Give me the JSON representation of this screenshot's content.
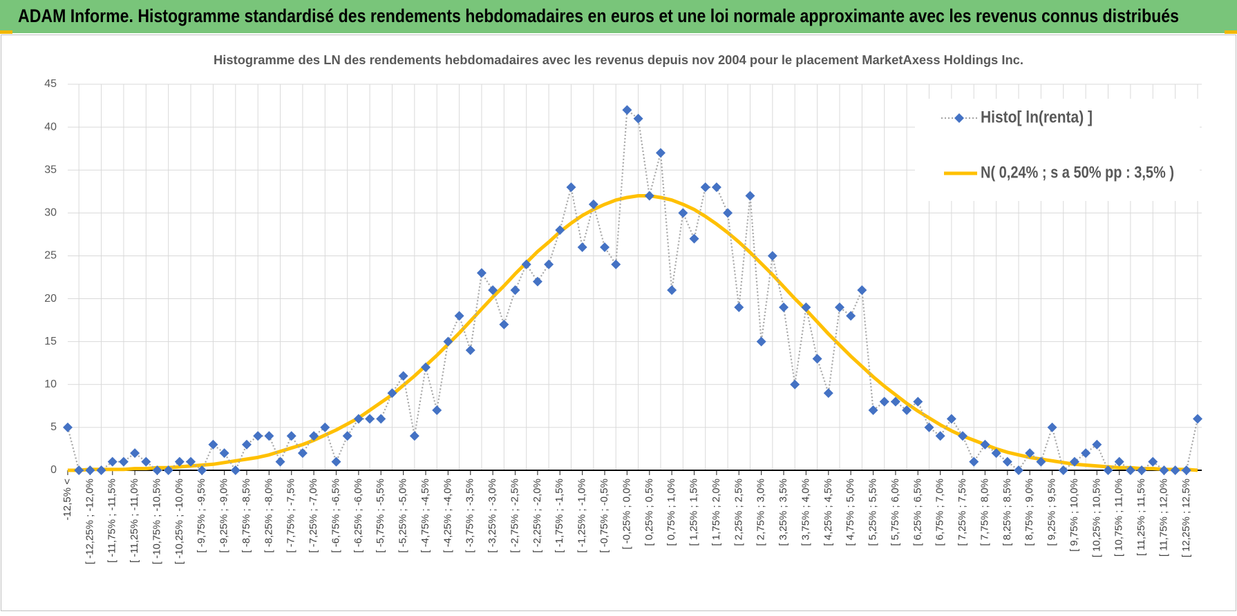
{
  "header": {
    "title": "ADAM Informe. Histogramme standardisé des rendements hebdomadaires en euros et une loi normale approximante avec les revenus connus distribués"
  },
  "chart_data": {
    "type": "line",
    "title": "Histogramme des LN des rendements hebdomadaires avec les revenus depuis nov 2004 pour le placement MarketAxess Holdings Inc.",
    "categories": [
      "-12,5% <",
      null,
      "[ -12,25% ; -12,0%",
      null,
      "[ -11,75% ; -11,5%",
      null,
      "[ -11,25% ; -11,0%",
      null,
      "[ -10,75% ; -10,5%",
      null,
      "[ -10,25% ; -10,0%",
      null,
      "[ -9,75% ; -9,5%",
      null,
      "[ -9,25% ; -9,0%",
      null,
      "[ -8,75% ; -8,5%",
      null,
      "[ -8,25% ; -8,0%",
      null,
      "[ -7,75% ; -7,5%",
      null,
      "[ -7,25% ; -7,0%",
      null,
      "[ -6,75% ; -6,5%",
      null,
      "[ -6,25% ; -6,0%",
      null,
      "[ -5,75% ; -5,5%",
      null,
      "[ -5,25% ; -5,0%",
      null,
      "[ -4,75% ; -4,5%",
      null,
      "[ -4,25% ; -4,0%",
      null,
      "[ -3,75% ; -3,5%",
      null,
      "[ -3,25% ; -3,0%",
      null,
      "[ -2,75% ; -2,5%",
      null,
      "[ -2,25% ; -2,0%",
      null,
      "[ -1,75% ; -1,5%",
      null,
      "[ -1,25% ; -1,0%",
      null,
      "[ -0,75% ; -0,5%",
      null,
      "[ -0,25% ; 0,0%",
      null,
      "[ 0,25% ; 0,5%",
      null,
      "[ 0,75% ; 1,0%",
      null,
      "[ 1,25% ; 1,5%",
      null,
      "[ 1,75% ; 2,0%",
      null,
      "[ 2,25% ; 2,5%",
      null,
      "[ 2,75% ; 3,0%",
      null,
      "[ 3,25% ; 3,5%",
      null,
      "[ 3,75% ; 4,0%",
      null,
      "[ 4,25% ; 4,5%",
      null,
      "[ 4,75% ; 5,0%",
      null,
      "[ 5,25% ; 5,5%",
      null,
      "[ 5,75% ; 6,0%",
      null,
      "[ 6,25% ; 6,5%",
      null,
      "[ 6,75% ; 7,0%",
      null,
      "[ 7,25% ; 7,5%",
      null,
      "[ 7,75% ; 8,0%",
      null,
      "[ 8,25% ; 8,5%",
      null,
      "[ 8,75% ; 9,0%",
      null,
      "[ 9,25% ; 9,5%",
      null,
      "[ 9,75% ; 10,0%",
      null,
      "[ 10,25% ; 10,5%",
      null,
      "[ 10,75% ; 11,0%",
      null,
      "[ 11,25% ; 11,5%",
      null,
      "[ 11,75% ; 12,0%",
      null,
      "[ 12,25% ; 12,5%",
      null
    ],
    "series": [
      {
        "name": "Histo[ ln(renta) ]",
        "color": "#4472c4",
        "values": [
          5,
          0,
          0,
          0,
          1,
          1,
          2,
          1,
          0,
          0,
          1,
          1,
          0,
          3,
          2,
          0,
          3,
          4,
          4,
          1,
          4,
          2,
          4,
          5,
          1,
          4,
          6,
          6,
          6,
          9,
          11,
          4,
          12,
          7,
          15,
          18,
          14,
          23,
          21,
          17,
          21,
          24,
          22,
          24,
          28,
          33,
          26,
          31,
          26,
          24,
          42,
          41,
          32,
          37,
          21,
          30,
          27,
          33,
          33,
          30,
          19,
          32,
          15,
          25,
          19,
          10,
          19,
          13,
          9,
          19,
          18,
          21,
          7,
          8,
          8,
          7,
          8,
          5,
          4,
          6,
          4,
          1,
          3,
          2,
          1,
          0,
          2,
          1,
          5,
          0,
          1,
          2,
          3,
          0,
          1,
          0,
          0,
          1,
          0,
          0,
          0,
          6
        ]
      },
      {
        "name": "N( 0,24% ; s a 50% pp : 3,5% )",
        "color": "#ffc000",
        "values": [
          0.0,
          0.0,
          0.1,
          0.1,
          0.1,
          0.1,
          0.2,
          0.2,
          0.3,
          0.3,
          0.4,
          0.5,
          0.6,
          0.7,
          0.9,
          1.1,
          1.3,
          1.5,
          1.8,
          2.2,
          2.6,
          3.0,
          3.5,
          4.1,
          4.7,
          5.4,
          6.1,
          7.0,
          7.9,
          8.8,
          9.9,
          11.0,
          12.2,
          13.4,
          14.7,
          16.0,
          17.4,
          18.8,
          20.2,
          21.5,
          22.9,
          24.2,
          25.5,
          26.6,
          27.8,
          28.8,
          29.7,
          30.4,
          31.0,
          31.5,
          31.8,
          32.0,
          32.0,
          31.8,
          31.5,
          31.0,
          30.4,
          29.6,
          28.7,
          27.7,
          26.6,
          25.4,
          24.1,
          22.8,
          21.4,
          20.0,
          18.7,
          17.3,
          15.9,
          14.6,
          13.3,
          12.1,
          10.9,
          9.8,
          8.8,
          7.8,
          6.9,
          6.1,
          5.3,
          4.6,
          4.0,
          3.5,
          3.0,
          2.5,
          2.1,
          1.8,
          1.5,
          1.3,
          1.1,
          0.9,
          0.7,
          0.6,
          0.5,
          0.4,
          0.3,
          0.3,
          0.2,
          0.2,
          0.1,
          0.1,
          0.1,
          0.0
        ]
      }
    ],
    "ylim": [
      0,
      45
    ],
    "yticks": [
      0,
      5,
      10,
      15,
      20,
      25,
      30,
      35,
      40,
      45
    ],
    "grid": true,
    "legend": "top-right"
  }
}
